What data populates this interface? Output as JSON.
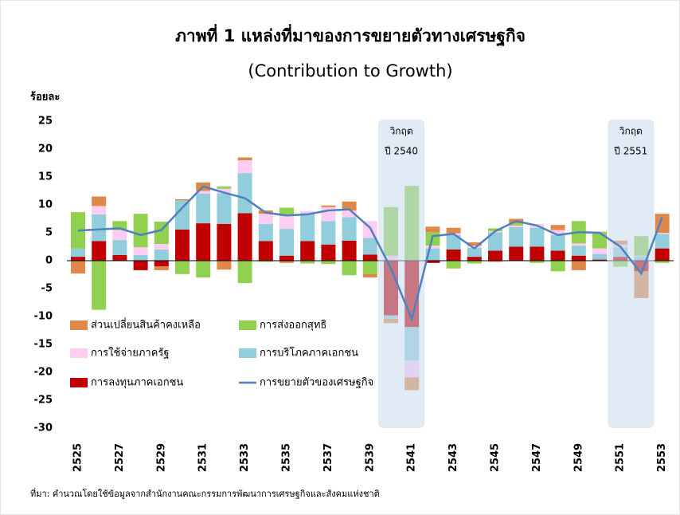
{
  "chart_data": {
    "type": "bar",
    "title": "ภาพที่ 1 แหล่งที่มาของการขยายตัวทางเศรษฐกิจ",
    "subtitle": "(Contribution to Growth)",
    "y_label": "ร้อยละ",
    "source": "ที่มา: คำนวณโดยใช้ข้อมูลจากสำนักงานคณะกรรมการพัฒนาการเศรษฐกิจและสังคมแห่งชาติ",
    "categories": [
      "2525",
      null,
      "2527",
      null,
      "2529",
      null,
      "2531",
      null,
      "2533",
      null,
      "2535",
      null,
      "2537",
      null,
      "2539",
      null,
      "2541",
      null,
      "2543",
      null,
      "2545",
      null,
      "2547",
      null,
      "2549",
      null,
      "2551",
      null,
      "2553"
    ],
    "ylim": [
      -30,
      25
    ],
    "yticks": [
      25,
      20,
      15,
      10,
      5,
      0,
      -5,
      -10,
      -15,
      -20,
      -25,
      -30
    ],
    "series": [
      {
        "name": "การลงทุนภาคเอกชน",
        "color": "#c00000",
        "values": [
          0.7,
          3.5,
          1,
          -1.7,
          -1,
          5.6,
          6.7,
          6.6,
          8.5,
          3.5,
          0.9,
          3.5,
          2.9,
          3.6,
          1.1,
          -9.8,
          -11.9,
          -0.4,
          2,
          0.7,
          1.8,
          2.5,
          2.5,
          1.8,
          0.9,
          0.2,
          0.7,
          -1.9,
          2.2
        ]
      },
      {
        "name": "การบริโภคภาคเอกชน",
        "color": "#92cddc",
        "values": [
          1.5,
          4.8,
          2.7,
          1,
          2,
          5.2,
          5.3,
          5.5,
          7.2,
          3.1,
          4.8,
          5,
          4.2,
          4.2,
          3,
          -0.6,
          -6,
          2.2,
          2.6,
          1.6,
          3.3,
          3.5,
          3.4,
          2.8,
          1.8,
          1,
          1.7,
          0.8,
          2.6
        ]
      },
      {
        "name": "การใช้จ่ายภาครัฐ",
        "color": "#ffccf2",
        "values": [
          0,
          1.5,
          1.8,
          1.4,
          1,
          0,
          0.5,
          0.8,
          2.3,
          1.8,
          2.3,
          0.4,
          2.5,
          1.2,
          3,
          0.9,
          -3,
          0.5,
          0.3,
          0.4,
          0.2,
          0.3,
          0.7,
          0.9,
          0.4,
          1,
          0.5,
          0.1,
          0.2
        ]
      },
      {
        "name": "การส่งออกสุทธิ",
        "color": "#92d050",
        "values": [
          6.5,
          -8.8,
          1.6,
          6,
          4,
          -2.4,
          -3,
          0.4,
          -4,
          -0.2,
          1.5,
          -0.5,
          -0.6,
          -2.6,
          -2.4,
          8.7,
          13.4,
          2.4,
          -1.4,
          -0.5,
          0.5,
          0.4,
          -0.4,
          -1.9,
          4,
          3,
          -1.1,
          3.5,
          -0.4
        ]
      },
      {
        "name": "ส่วนเปลี่ยนสินค้าคงเหลือ",
        "color": "#e0874a",
        "values": [
          -2.3,
          1.7,
          0,
          0,
          -0.7,
          0.2,
          1.5,
          -1.6,
          0.5,
          0.6,
          -0.4,
          0,
          0.3,
          1.6,
          -0.6,
          -0.8,
          -2.3,
          1,
          1,
          0.6,
          -0.2,
          0.8,
          0,
          0.9,
          -1.7,
          0,
          0.7,
          -4.8,
          3.4
        ]
      }
    ],
    "line": {
      "name": "การขยายตัวของเศรษฐกิจ",
      "color": "#4f81bd",
      "values": [
        5.4,
        5.6,
        5.8,
        4.6,
        5.5,
        9.5,
        13.3,
        12.2,
        11.2,
        8.6,
        8.1,
        8.3,
        9,
        9.2,
        5.9,
        -1.4,
        -10.5,
        4.4,
        4.8,
        2.2,
        5.3,
        7.1,
        6.3,
        4.6,
        5.1,
        5,
        2.5,
        -2.3,
        7.8
      ]
    },
    "annotations": [
      {
        "lines": [
          "วิกฤต",
          "ปี 2540"
        ],
        "from": 2540,
        "to": 2541
      },
      {
        "lines": [
          "วิกฤต",
          "ปี 2551"
        ],
        "from": 2551,
        "to": 2552
      }
    ]
  }
}
